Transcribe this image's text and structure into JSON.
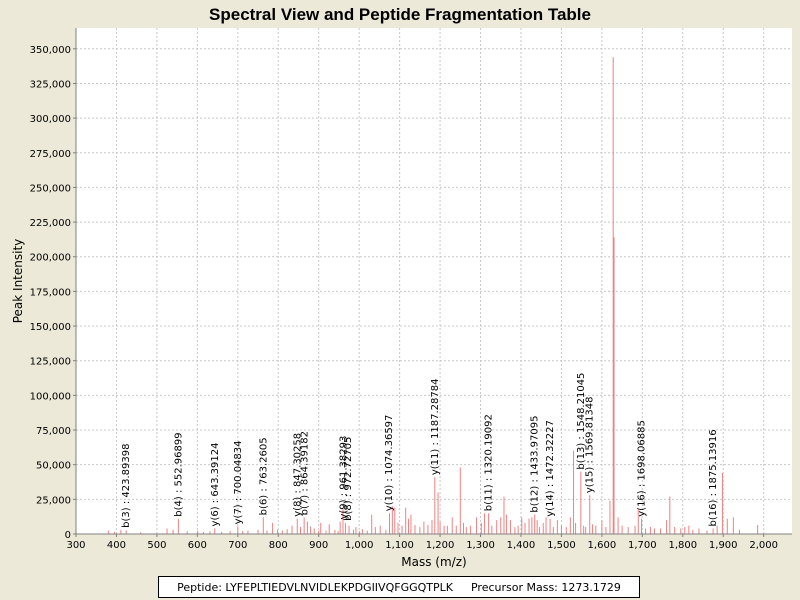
{
  "chart_data": {
    "type": "bar",
    "title": "Spectral View and Peptide Fragmentation Table",
    "xlabel": "Mass (m/z)",
    "ylabel": "Peak Intensity",
    "xlim": [
      300,
      2070
    ],
    "ylim": [
      0,
      365000
    ],
    "xticks": [
      300,
      400,
      500,
      600,
      700,
      800,
      900,
      1000,
      1100,
      1200,
      1300,
      1400,
      1500,
      1600,
      1700,
      1800,
      1900,
      2000
    ],
    "xtick_labels": [
      "300",
      "400",
      "500",
      "600",
      "700",
      "800",
      "900",
      "1,000",
      "1,100",
      "1,200",
      "1,300",
      "1,400",
      "1,500",
      "1,600",
      "1,700",
      "1,800",
      "1,900",
      "2,000"
    ],
    "yticks": [
      0,
      25000,
      50000,
      75000,
      100000,
      125000,
      150000,
      175000,
      200000,
      225000,
      250000,
      275000,
      300000,
      325000,
      350000
    ],
    "ytick_labels": [
      "0",
      "25,000",
      "50,000",
      "75,000",
      "100,000",
      "125,000",
      "150,000",
      "175,000",
      "200,000",
      "225,000",
      "250,000",
      "275,000",
      "300,000",
      "325,000",
      "350,000"
    ],
    "grid": true,
    "peaks": [
      [
        380,
        2500
      ],
      [
        395,
        1500
      ],
      [
        411,
        3000
      ],
      [
        424,
        2500
      ],
      [
        460,
        1200
      ],
      [
        525,
        4000
      ],
      [
        540,
        3000
      ],
      [
        553,
        11000
      ],
      [
        575,
        2000
      ],
      [
        601,
        2500
      ],
      [
        615,
        1500
      ],
      [
        631,
        2000
      ],
      [
        643,
        4000
      ],
      [
        660,
        1500
      ],
      [
        681,
        2000
      ],
      [
        700,
        5500
      ],
      [
        712,
        2000
      ],
      [
        725,
        2500
      ],
      [
        750,
        3000
      ],
      [
        763,
        12000
      ],
      [
        772,
        2500
      ],
      [
        786,
        8000
      ],
      [
        798,
        3000
      ],
      [
        810,
        2500
      ],
      [
        822,
        3500
      ],
      [
        834,
        6000
      ],
      [
        847,
        11000
      ],
      [
        855,
        5000
      ],
      [
        864,
        12000
      ],
      [
        872,
        9000
      ],
      [
        880,
        5500
      ],
      [
        889,
        4000
      ],
      [
        900,
        2500
      ],
      [
        905,
        8000
      ],
      [
        918,
        2500
      ],
      [
        926,
        7000
      ],
      [
        940,
        3000
      ],
      [
        948,
        2000
      ],
      [
        953,
        9000
      ],
      [
        960,
        18000
      ],
      [
        966,
        8000
      ],
      [
        975,
        6000
      ],
      [
        986,
        3000
      ],
      [
        992,
        5000
      ],
      [
        1001,
        2000
      ],
      [
        1008,
        3500
      ],
      [
        1020,
        2500
      ],
      [
        1031,
        14000
      ],
      [
        1040,
        5000
      ],
      [
        1052,
        6000
      ],
      [
        1066,
        3000
      ],
      [
        1075,
        15000
      ],
      [
        1082,
        20000
      ],
      [
        1088,
        19000
      ],
      [
        1096,
        8000
      ],
      [
        1106,
        6000
      ],
      [
        1115,
        19000
      ],
      [
        1122,
        11000
      ],
      [
        1128,
        14000
      ],
      [
        1138,
        6500
      ],
      [
        1150,
        5000
      ],
      [
        1160,
        9000
      ],
      [
        1170,
        6500
      ],
      [
        1180,
        10000
      ],
      [
        1187,
        41000
      ],
      [
        1195,
        30000
      ],
      [
        1200,
        9000
      ],
      [
        1210,
        6000
      ],
      [
        1218,
        6000
      ],
      [
        1230,
        12000
      ],
      [
        1240,
        6000
      ],
      [
        1250,
        48000
      ],
      [
        1258,
        8000
      ],
      [
        1265,
        5000
      ],
      [
        1275,
        6000
      ],
      [
        1290,
        12000
      ],
      [
        1302,
        8000
      ],
      [
        1310,
        15000
      ],
      [
        1320,
        15000
      ],
      [
        1328,
        6000
      ],
      [
        1340,
        10000
      ],
      [
        1350,
        12000
      ],
      [
        1358,
        27000
      ],
      [
        1364,
        14000
      ],
      [
        1374,
        10000
      ],
      [
        1385,
        5000
      ],
      [
        1393,
        6000
      ],
      [
        1402,
        12000
      ],
      [
        1410,
        8000
      ],
      [
        1420,
        11000
      ],
      [
        1427,
        12000
      ],
      [
        1434,
        14000
      ],
      [
        1440,
        10000
      ],
      [
        1446,
        5000
      ],
      [
        1455,
        8000
      ],
      [
        1462,
        12000
      ],
      [
        1472,
        11000
      ],
      [
        1480,
        5000
      ],
      [
        1490,
        10000
      ],
      [
        1500,
        6000
      ],
      [
        1512,
        5000
      ],
      [
        1522,
        12000
      ],
      [
        1530,
        60000
      ],
      [
        1535,
        8000
      ],
      [
        1548,
        45000
      ],
      [
        1555,
        6000
      ],
      [
        1560,
        5000
      ],
      [
        1570,
        28000
      ],
      [
        1577,
        7000
      ],
      [
        1585,
        6000
      ],
      [
        1600,
        10000
      ],
      [
        1610,
        5000
      ],
      [
        1620,
        24000
      ],
      [
        1628,
        344000
      ],
      [
        1630,
        214000
      ],
      [
        1640,
        12000
      ],
      [
        1650,
        6000
      ],
      [
        1665,
        5000
      ],
      [
        1682,
        6000
      ],
      [
        1690,
        18000
      ],
      [
        1698,
        11000
      ],
      [
        1708,
        4000
      ],
      [
        1720,
        5000
      ],
      [
        1730,
        4000
      ],
      [
        1745,
        4000
      ],
      [
        1760,
        10000
      ],
      [
        1768,
        27000
      ],
      [
        1780,
        5000
      ],
      [
        1795,
        4000
      ],
      [
        1805,
        5000
      ],
      [
        1815,
        6000
      ],
      [
        1825,
        3000
      ],
      [
        1840,
        4000
      ],
      [
        1860,
        2500
      ],
      [
        1875,
        4000
      ],
      [
        1885,
        6000
      ],
      [
        1898,
        44000
      ],
      [
        1910,
        11000
      ],
      [
        1925,
        12000
      ],
      [
        1940,
        3000
      ],
      [
        1985,
        6500
      ]
    ],
    "annotations": [
      {
        "x": 423.89398,
        "y": 3000,
        "label": "b(3) : 423.89398"
      },
      {
        "x": 552.96899,
        "y": 11000,
        "label": "b(4) : 552.96899"
      },
      {
        "x": 643.39124,
        "y": 4000,
        "label": "y(6) : 643.39124"
      },
      {
        "x": 700.04834,
        "y": 5500,
        "label": "y(7) : 700.04834"
      },
      {
        "x": 763.2605,
        "y": 12000,
        "label": "b(6) : 763.2605"
      },
      {
        "x": 847.30258,
        "y": 11000,
        "label": "y(8) : 847.30258"
      },
      {
        "x": 864.39182,
        "y": 12000,
        "label": "b(7) : 864.39182"
      },
      {
        "x": 961.38293,
        "y": 9000,
        "label": "y(9) : 961.38293"
      },
      {
        "x": 972.72705,
        "y": 8000,
        "label": "b(8) : 972.72705"
      },
      {
        "x": 1074.36597,
        "y": 15000,
        "label": "y(10) : 1074.36597"
      },
      {
        "x": 1187.28784,
        "y": 41000,
        "label": "y(11) : 1187.28784"
      },
      {
        "x": 1320.19092,
        "y": 15000,
        "label": "b(11) : 1320.19092"
      },
      {
        "x": 1433.97095,
        "y": 14000,
        "label": "b(12) : 1433.97095"
      },
      {
        "x": 1472.32227,
        "y": 11000,
        "label": "y(14) : 1472.32227"
      },
      {
        "x": 1548.21045,
        "y": 45000,
        "label": "b(13) : 1548.21045"
      },
      {
        "x": 1569.81348,
        "y": 28000,
        "label": "y(15) : 1569.81348"
      },
      {
        "x": 1698.06885,
        "y": 11000,
        "label": "y(16) : 1698.06885"
      },
      {
        "x": 1875.13916,
        "y": 4000,
        "label": "b(16) : 1875.13916"
      }
    ]
  },
  "footer": {
    "peptide": "Peptide: LYFEPLTIEDVLNVIDLEKPDGIIVQFGGQTPLK",
    "precursor": "Precursor Mass: 1273.1729"
  },
  "colors": {
    "peak": "#f08080",
    "grid": "#c8c8c8",
    "plot_bg": "#ffffff",
    "frame_bg": "#ece9d8"
  }
}
